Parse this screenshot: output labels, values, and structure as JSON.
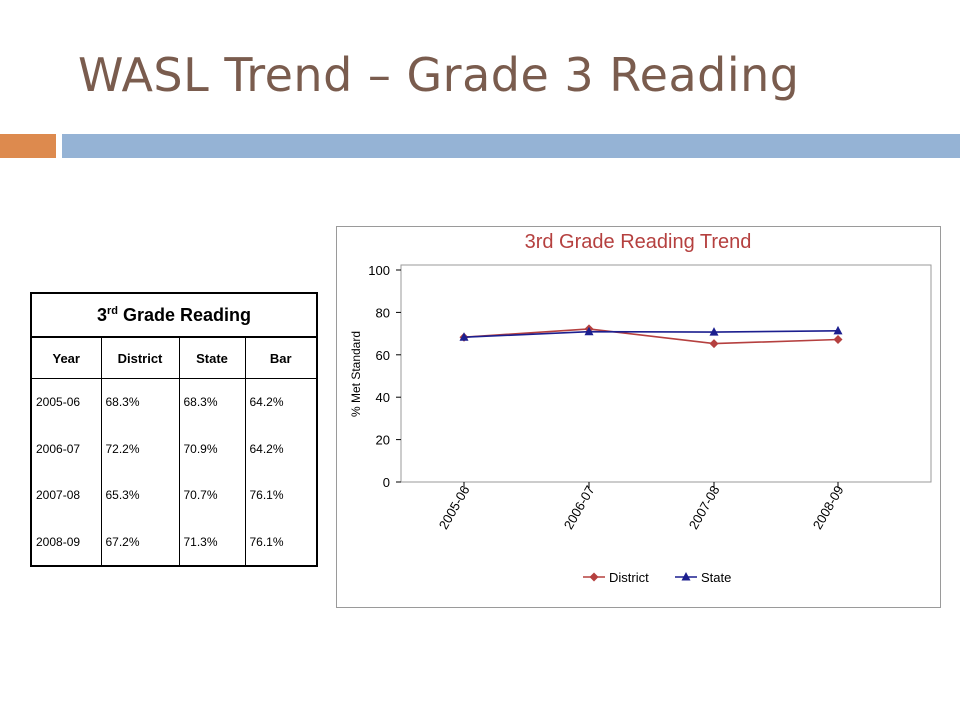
{
  "slide": {
    "title": "WASL Trend – Grade 3 Reading"
  },
  "colors": {
    "title": "#7a5c4e",
    "accent_orange": "#dd8a4e",
    "accent_blue": "#95b3d5",
    "district": "#b5403f",
    "state": "#1c1f8f",
    "chart_title": "#b5403f"
  },
  "table": {
    "title_main": "3",
    "title_sup": "rd",
    "title_rest": " Grade Reading",
    "headers": [
      "Year",
      "District",
      "State",
      "Bar"
    ],
    "rows": [
      [
        "2005-06",
        "68.3%",
        "68.3%",
        "64.2%"
      ],
      [
        "2006-07",
        "72.2%",
        "70.9%",
        "64.2%"
      ],
      [
        "2007-08",
        "65.3%",
        "70.7%",
        "76.1%"
      ],
      [
        "2008-09",
        "67.2%",
        "71.3%",
        "76.1%"
      ]
    ]
  },
  "chart_data": {
    "type": "line",
    "title": "3rd Grade Reading Trend",
    "xlabel": "",
    "ylabel": "% Met Standard",
    "categories": [
      "2005-06",
      "2006-07",
      "2007-08",
      "2008-09"
    ],
    "series": [
      {
        "name": "District",
        "values": [
          68.3,
          72.2,
          65.3,
          67.2
        ],
        "marker": "diamond"
      },
      {
        "name": "State",
        "values": [
          68.3,
          70.9,
          70.7,
          71.3
        ],
        "marker": "triangle"
      }
    ],
    "ylim": [
      0,
      100
    ],
    "yticks": [
      0,
      20,
      40,
      60,
      80,
      100
    ],
    "grid": false,
    "legend": "bottom"
  }
}
